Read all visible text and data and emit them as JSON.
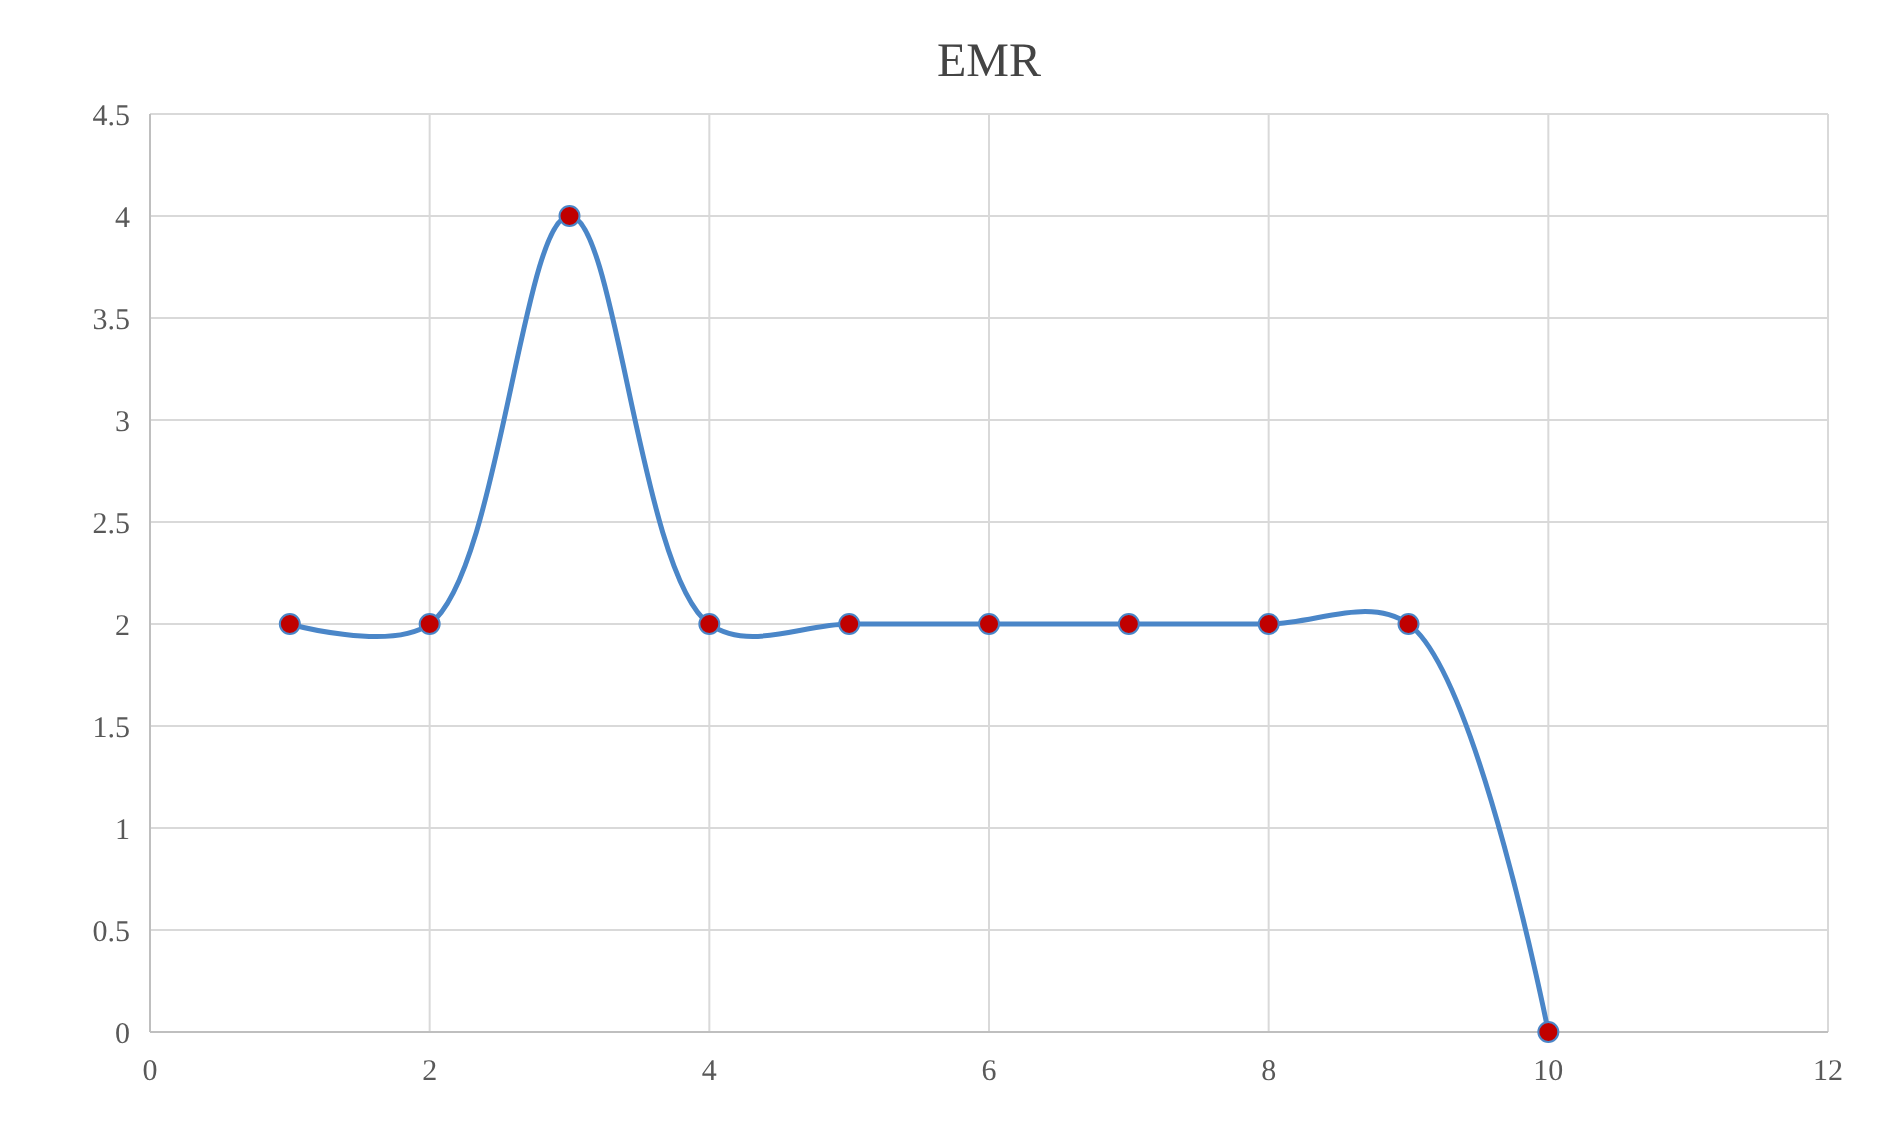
{
  "chart_data": {
    "type": "line",
    "title": "EMR",
    "x": [
      1,
      2,
      3,
      4,
      5,
      6,
      7,
      8,
      9,
      10
    ],
    "series": [
      {
        "color": "#4a86c8",
        "values": [
          2,
          2,
          4,
          2,
          2,
          2,
          2,
          2,
          2,
          0
        ]
      }
    ],
    "xlim": [
      0,
      12
    ],
    "xticks": [
      0,
      2,
      4,
      6,
      8,
      10,
      12
    ],
    "ylim": [
      0,
      4.5
    ],
    "yticks": [
      0,
      0.5,
      1,
      1.5,
      2,
      2.5,
      3,
      3.5,
      4,
      4.5
    ],
    "grid": true,
    "marker": "circle",
    "line_style": "solid"
  }
}
